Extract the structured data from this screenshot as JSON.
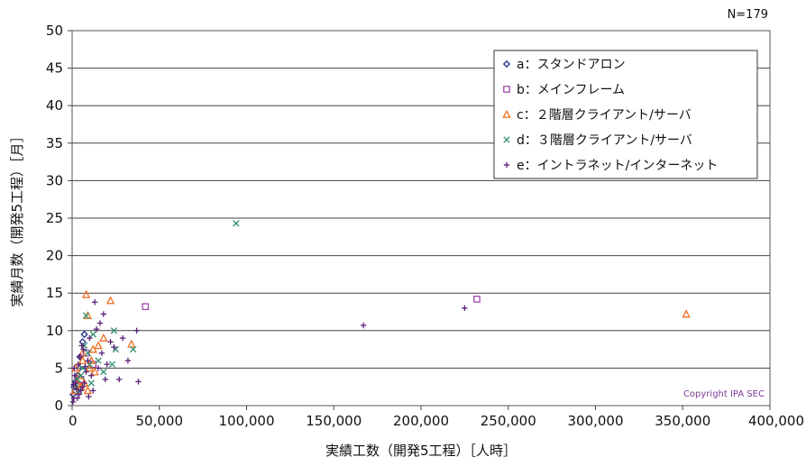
{
  "chart_data": {
    "type": "scatter",
    "xlabel": "実績工数（開発5工程）［人時］",
    "ylabel": "実績月数（開発5工程）［月］",
    "xlim": [
      0,
      400000
    ],
    "ylim": [
      0,
      50
    ],
    "x_ticks": [
      0,
      50000,
      100000,
      150000,
      200000,
      250000,
      300000,
      350000,
      400000
    ],
    "x_tick_labels": [
      "0",
      "50,000",
      "100,000",
      "150,000",
      "200,000",
      "250,000",
      "300,000",
      "350,000",
      "400,000"
    ],
    "y_ticks": [
      0,
      5,
      10,
      15,
      20,
      25,
      30,
      35,
      40,
      45,
      50
    ],
    "y_tick_labels": [
      "0",
      "5",
      "10",
      "15",
      "20",
      "25",
      "30",
      "35",
      "40",
      "45",
      "50"
    ],
    "grid": true,
    "legend_position": "top-right",
    "note": "N=179",
    "copyright": "Copyright IPA SEC",
    "series": [
      {
        "name": "a：スタンドアロン",
        "marker": "diamond",
        "color": "#1f2f8a",
        "points": [
          [
            600,
            1.5
          ],
          [
            1200,
            2.5
          ],
          [
            2000,
            3.2
          ],
          [
            3000,
            4.0
          ],
          [
            4500,
            6.5
          ],
          [
            6000,
            8.5
          ],
          [
            7000,
            9.5
          ],
          [
            4000,
            5.0
          ]
        ]
      },
      {
        "name": "b：メインフレーム",
        "marker": "square",
        "color": "#a04aa8",
        "points": [
          [
            42000,
            13.2
          ],
          [
            232000,
            14.2
          ],
          [
            8000,
            7.0
          ],
          [
            5000,
            3.5
          ],
          [
            3000,
            2.8
          ],
          [
            12000,
            5.5
          ],
          [
            2000,
            2.0
          ]
        ]
      },
      {
        "name": "c：２階層クライアント/サーバ",
        "marker": "triangle",
        "color": "#f07020",
        "points": [
          [
            352000,
            12.2
          ],
          [
            8000,
            14.8
          ],
          [
            22000,
            14.0
          ],
          [
            9000,
            12.0
          ],
          [
            18000,
            9.0
          ],
          [
            15000,
            8.0
          ],
          [
            34000,
            8.2
          ],
          [
            12000,
            7.5
          ],
          [
            6000,
            6.0
          ],
          [
            10000,
            5.0
          ],
          [
            3000,
            3.0
          ],
          [
            5000,
            2.5
          ],
          [
            2000,
            5.0
          ],
          [
            4000,
            4.0
          ],
          [
            7000,
            3.0
          ],
          [
            9000,
            2.0
          ],
          [
            13000,
            4.5
          ],
          [
            1500,
            2.0
          ],
          [
            6000,
            7.0
          ],
          [
            11000,
            6.0
          ]
        ]
      },
      {
        "name": "d：３階層クライアント/サーバ",
        "marker": "x",
        "color": "#2f8f6f",
        "points": [
          [
            94000,
            24.3
          ],
          [
            8000,
            12.0
          ],
          [
            24000,
            10.0
          ],
          [
            35000,
            7.5
          ],
          [
            25000,
            7.5
          ],
          [
            23000,
            5.5
          ],
          [
            15000,
            6.0
          ],
          [
            10000,
            5.5
          ],
          [
            5000,
            4.0
          ],
          [
            3000,
            3.5
          ],
          [
            7000,
            8.0
          ],
          [
            12000,
            9.5
          ],
          [
            2000,
            2.5
          ],
          [
            18000,
            4.5
          ],
          [
            9000,
            7.0
          ],
          [
            6000,
            5.0
          ],
          [
            4000,
            2.0
          ],
          [
            11000,
            3.0
          ]
        ]
      },
      {
        "name": "e：イントラネット/インターネット",
        "marker": "plus",
        "color": "#5a1f7a",
        "points": [
          [
            167000,
            10.7
          ],
          [
            225000,
            13.0
          ],
          [
            29000,
            9.0
          ],
          [
            37000,
            10.0
          ],
          [
            38000,
            3.2
          ],
          [
            27000,
            3.5
          ],
          [
            32000,
            6.0
          ],
          [
            24000,
            7.8
          ],
          [
            16000,
            11.0
          ],
          [
            18000,
            12.2
          ],
          [
            13000,
            13.8
          ],
          [
            14000,
            10.2
          ],
          [
            20000,
            5.5
          ],
          [
            17000,
            7.0
          ],
          [
            10000,
            9.0
          ],
          [
            9000,
            6.0
          ],
          [
            8000,
            4.5
          ],
          [
            7000,
            3.0
          ],
          [
            6000,
            2.5
          ],
          [
            5000,
            2.0
          ],
          [
            4000,
            1.5
          ],
          [
            3000,
            1.0
          ],
          [
            2500,
            2.2
          ],
          [
            2000,
            3.0
          ],
          [
            1500,
            4.0
          ],
          [
            1000,
            1.0
          ],
          [
            800,
            2.8
          ],
          [
            500,
            0.5
          ],
          [
            1200,
            5.0
          ],
          [
            3500,
            5.5
          ],
          [
            4500,
            6.5
          ],
          [
            6500,
            7.5
          ],
          [
            11000,
            4.0
          ],
          [
            12000,
            2.0
          ],
          [
            15000,
            5.0
          ],
          [
            19000,
            3.5
          ],
          [
            22000,
            8.5
          ],
          [
            9500,
            1.2
          ],
          [
            7500,
            5.2
          ],
          [
            5500,
            8.0
          ]
        ]
      }
    ]
  }
}
